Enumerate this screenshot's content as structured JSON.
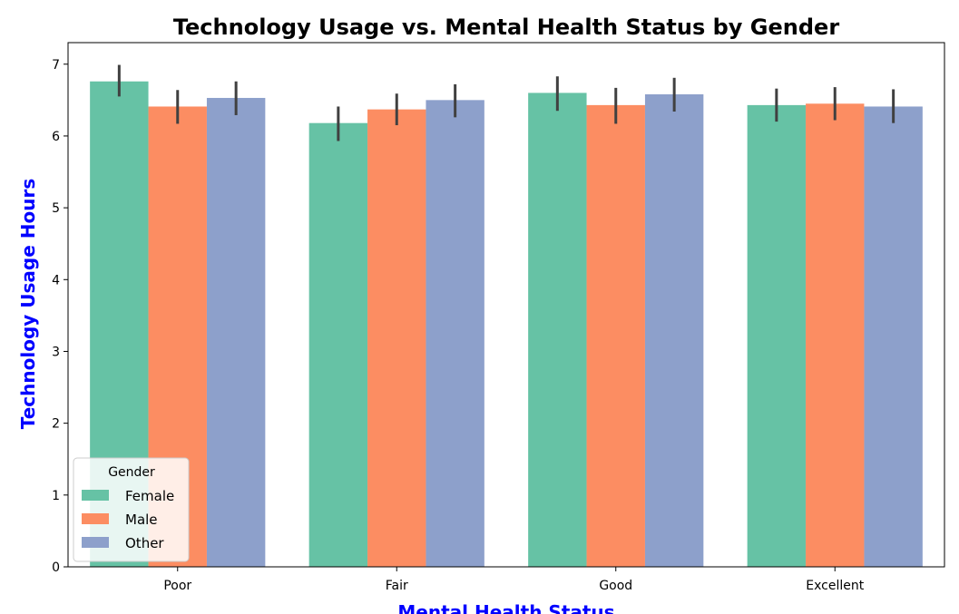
{
  "chart_data": {
    "type": "bar",
    "title": "Technology Usage vs. Mental Health Status by Gender",
    "xlabel": "Mental Health Status",
    "ylabel": "Technology Usage Hours",
    "categories": [
      "Poor",
      "Fair",
      "Good",
      "Excellent"
    ],
    "ylim": [
      0,
      7.3
    ],
    "yticks": [
      0,
      1,
      2,
      3,
      4,
      5,
      6,
      7
    ],
    "grid": false,
    "legend": {
      "title": "Gender",
      "placement": "lower-left"
    },
    "series": [
      {
        "name": "Female",
        "color": "#66c2a5",
        "values": [
          6.76,
          6.18,
          6.6,
          6.43
        ],
        "err_low": [
          6.55,
          5.93,
          6.35,
          6.2
        ],
        "err_high": [
          6.99,
          6.41,
          6.83,
          6.66
        ]
      },
      {
        "name": "Male",
        "color": "#fc8d62",
        "values": [
          6.41,
          6.37,
          6.43,
          6.45
        ],
        "err_low": [
          6.17,
          6.15,
          6.17,
          6.22
        ],
        "err_high": [
          6.64,
          6.59,
          6.67,
          6.68
        ]
      },
      {
        "name": "Other",
        "color": "#8da0cb",
        "values": [
          6.53,
          6.5,
          6.58,
          6.41
        ],
        "err_low": [
          6.29,
          6.26,
          6.34,
          6.18
        ],
        "err_high": [
          6.76,
          6.72,
          6.81,
          6.65
        ]
      }
    ]
  }
}
